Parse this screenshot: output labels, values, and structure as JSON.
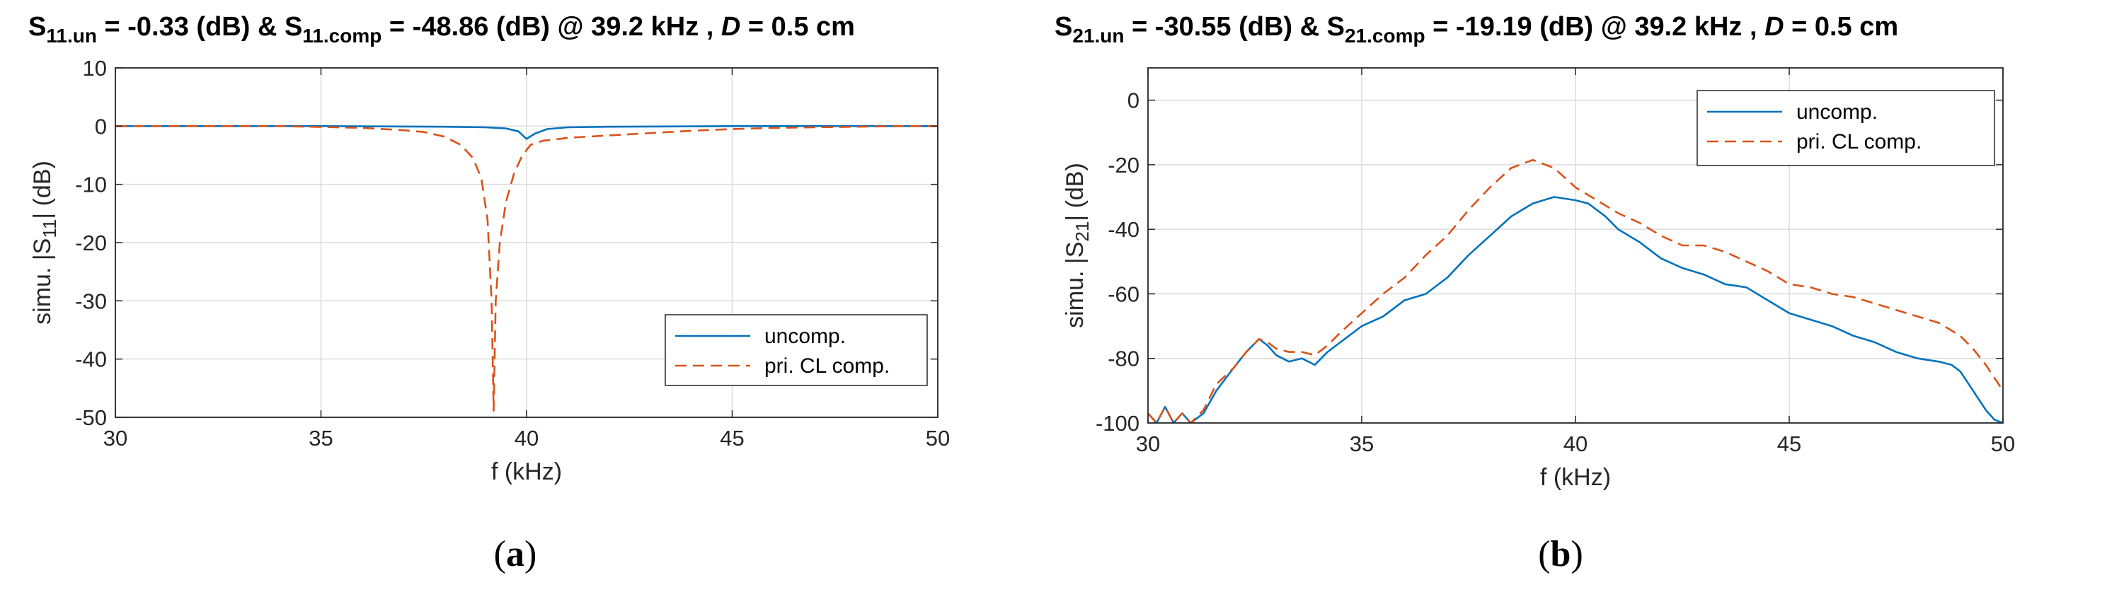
{
  "chart_data": [
    {
      "type": "line",
      "title_parts": [
        "S",
        "11.un",
        " = -0.33 (dB)   &   S",
        "11.comp",
        " = -48.86 (dB)   @ 39.2 kHz ,   ",
        "D",
        " = 0.5 cm"
      ],
      "xlabel": "f (kHz)",
      "ylabel_parts": [
        "simu. |S",
        "11",
        "| (dB)"
      ],
      "xlim": [
        30,
        50
      ],
      "ylim": [
        -50,
        10
      ],
      "xticks": [
        30,
        35,
        40,
        45,
        50
      ],
      "yticks": [
        -50,
        -40,
        -30,
        -20,
        -10,
        0,
        10
      ],
      "grid": true,
      "legend_position": "lower-right",
      "panel_label": "(a)",
      "series": [
        {
          "name": "uncomp.",
          "color": "#0072BD",
          "dash": "solid",
          "x": [
            30,
            35,
            38,
            39,
            39.5,
            39.8,
            40,
            40.2,
            40.5,
            41,
            42,
            45,
            50
          ],
          "y": [
            0,
            0,
            -0.1,
            -0.2,
            -0.4,
            -0.9,
            -2.2,
            -1.3,
            -0.5,
            -0.2,
            -0.1,
            0,
            0
          ]
        },
        {
          "name": "pri. CL comp.",
          "color": "#D95319",
          "dash": "dashed",
          "x": [
            30,
            34,
            36,
            37,
            37.5,
            38,
            38.4,
            38.7,
            38.9,
            39.05,
            39.15,
            39.2,
            39.25,
            39.35,
            39.5,
            39.7,
            39.9,
            40.1,
            40.4,
            40.8,
            41,
            42,
            43,
            44,
            45,
            46,
            47,
            48,
            49,
            50
          ],
          "y": [
            0,
            0,
            -0.3,
            -0.7,
            -1,
            -1.8,
            -3.2,
            -5.5,
            -9,
            -16,
            -30,
            -48.86,
            -30,
            -20,
            -13,
            -8,
            -5,
            -3.2,
            -2.5,
            -2.2,
            -2,
            -1.6,
            -1.2,
            -0.8,
            -0.5,
            -0.3,
            -0.2,
            -0.1,
            0,
            0
          ]
        }
      ]
    },
    {
      "type": "line",
      "title_parts": [
        "S",
        "21.un",
        " = -30.55 (dB)   &   S",
        "21.comp",
        " = -19.19 (dB)   @ 39.2 kHz ,   ",
        "D",
        " = 0.5 cm"
      ],
      "xlabel": "f (kHz)",
      "ylabel_parts": [
        "simu. |S",
        "21",
        "| (dB)"
      ],
      "xlim": [
        30,
        50
      ],
      "ylim": [
        -100,
        10
      ],
      "xticks": [
        30,
        35,
        40,
        45,
        50
      ],
      "yticks": [
        -100,
        -80,
        -60,
        -40,
        -20,
        0
      ],
      "grid": true,
      "legend_position": "top-right",
      "panel_label": "(b)",
      "series": [
        {
          "name": "uncomp.",
          "color": "#0072BD",
          "dash": "solid",
          "x": [
            30,
            30.2,
            30.4,
            30.6,
            30.8,
            31,
            31.3,
            31.6,
            32,
            32.3,
            32.6,
            32.8,
            33,
            33.3,
            33.6,
            33.9,
            34.2,
            34.5,
            35,
            35.5,
            36,
            36.5,
            37,
            37.5,
            38,
            38.5,
            39,
            39.5,
            40,
            40.3,
            40.7,
            41,
            41.5,
            42,
            42.5,
            43,
            43.5,
            44,
            44.5,
            45,
            45.5,
            46,
            46.5,
            47,
            47.5,
            48,
            48.5,
            48.8,
            49,
            49.2,
            49.4,
            49.6,
            49.8,
            50
          ],
          "y": [
            -97,
            -100,
            -95,
            -100,
            -97,
            -100,
            -97,
            -90,
            -83,
            -78,
            -74,
            -76,
            -79,
            -81,
            -80,
            -82,
            -78,
            -75,
            -70,
            -67,
            -62,
            -60,
            -55,
            -48,
            -42,
            -36,
            -32,
            -30,
            -31,
            -32,
            -36,
            -40,
            -44,
            -49,
            -52,
            -54,
            -57,
            -58,
            -62,
            -66,
            -68,
            -70,
            -73,
            -75,
            -78,
            -80,
            -81,
            -82,
            -84,
            -88,
            -92,
            -96,
            -99,
            -100
          ]
        },
        {
          "name": "pri. CL comp.",
          "color": "#D95319",
          "dash": "dashed",
          "x": [
            30,
            30.2,
            30.4,
            30.6,
            30.8,
            31,
            31.3,
            31.6,
            32,
            32.3,
            32.6,
            32.8,
            33,
            33.3,
            33.6,
            33.9,
            34.2,
            34.5,
            35,
            35.5,
            36,
            36.5,
            37,
            37.5,
            38,
            38.5,
            39,
            39.5,
            40,
            40.5,
            41,
            41.5,
            42,
            42.5,
            43,
            43.5,
            44,
            44.5,
            45,
            45.5,
            46,
            46.5,
            47,
            47.5,
            48,
            48.5,
            49,
            49.3,
            49.6,
            49.8,
            50
          ],
          "y": [
            -97,
            -100,
            -95,
            -100,
            -97,
            -100,
            -96,
            -88,
            -83,
            -78,
            -74,
            -75,
            -77,
            -78,
            -78,
            -79,
            -76,
            -72,
            -66,
            -60,
            -55,
            -48,
            -42,
            -34,
            -27,
            -21,
            -18.5,
            -21,
            -27,
            -31,
            -35,
            -38,
            -42,
            -45,
            -45,
            -47,
            -50,
            -53,
            -57,
            -58,
            -60,
            -61,
            -63,
            -65,
            -67,
            -69,
            -73,
            -77,
            -82,
            -86,
            -90
          ]
        }
      ]
    }
  ]
}
